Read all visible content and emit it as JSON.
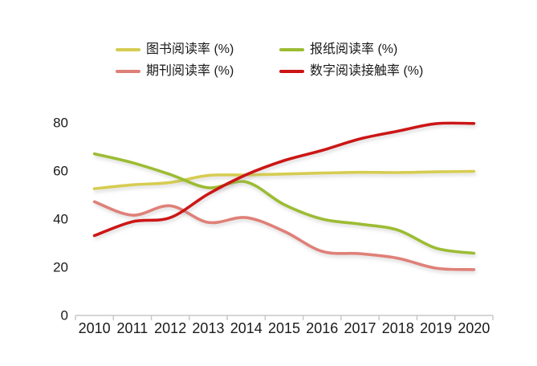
{
  "chart_data": {
    "type": "line",
    "title": "",
    "xlabel": "",
    "ylabel": "",
    "categories": [
      "2010",
      "2011",
      "2012",
      "2013",
      "2014",
      "2015",
      "2016",
      "2017",
      "2018",
      "2019",
      "2020"
    ],
    "series": [
      {
        "name": "图书阅读率 (%)",
        "color": "#d6cc51",
        "values": [
          52.3,
          53.9,
          54.9,
          57.8,
          58.0,
          58.4,
          58.8,
          59.1,
          59.0,
          59.3,
          59.5
        ]
      },
      {
        "name": "报纸阅读率 (%)",
        "color": "#9cbc32",
        "values": [
          66.8,
          63.1,
          58.2,
          52.7,
          55.1,
          45.7,
          39.7,
          37.6,
          35.1,
          27.6,
          25.5
        ]
      },
      {
        "name": "期刊阅读率 (%)",
        "color": "#df8078",
        "values": [
          46.9,
          41.3,
          45.2,
          38.3,
          40.3,
          34.6,
          26.3,
          25.3,
          23.4,
          19.3,
          18.7
        ]
      },
      {
        "name": "数字阅读接触率 (%)",
        "color": "#cc1414",
        "values": [
          32.8,
          38.6,
          40.3,
          50.1,
          58.1,
          64.0,
          68.2,
          73.0,
          76.2,
          79.3,
          79.4
        ]
      }
    ],
    "yticks": [
      0,
      20,
      40,
      60,
      80
    ],
    "ylim": [
      0,
      85
    ],
    "grid": false,
    "smooth": true,
    "legend_position": "top",
    "axis_text_color": "#1a1a1a",
    "axis_line_color": "#c8c8c8"
  }
}
